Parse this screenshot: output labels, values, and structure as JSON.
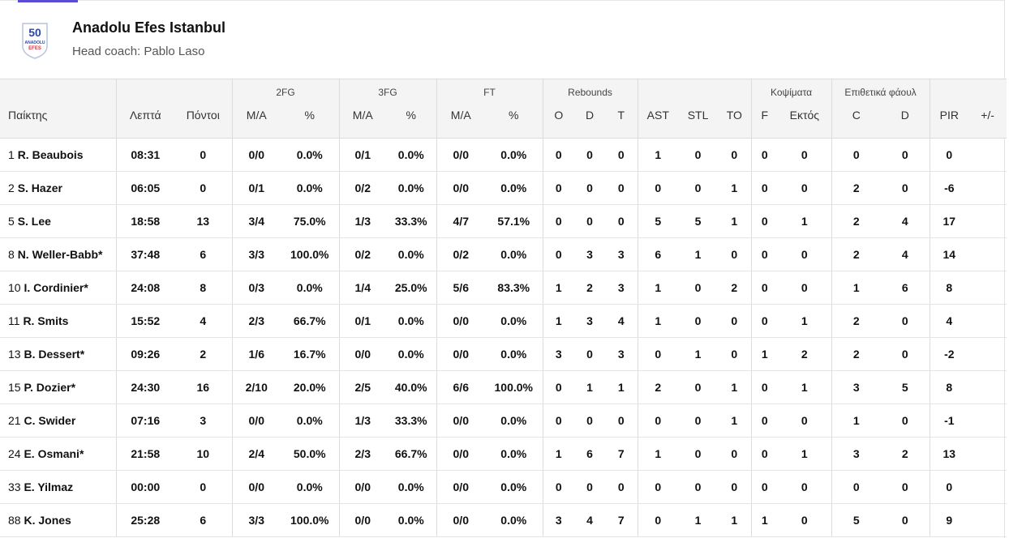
{
  "team": {
    "name": "Anadolu Efes Istanbul",
    "coach": "Head coach: Pablo Laso",
    "logo_text_top": "50",
    "logo_text_mid": "ANADOLU",
    "logo_text_bottom": "EFES",
    "colors": {
      "logo_blue": "#2a4aa0",
      "logo_red": "#d4313a"
    }
  },
  "header": {
    "groups": {
      "fg2": "2FG",
      "fg3": "3FG",
      "ft": "FT",
      "rebounds": "Rebounds",
      "blocks": "Κοψίματα",
      "fouls": "Επιθετικά φάουλ"
    },
    "cols": {
      "player": "Παίκτης",
      "minutes": "Λεπτά",
      "points": "Πόντοι",
      "fg2_ma": "M/A",
      "fg2_pct": "%",
      "fg3_ma": "M/A",
      "fg3_pct": "%",
      "ft_ma": "M/A",
      "ft_pct": "%",
      "reb_o": "O",
      "reb_d": "D",
      "reb_t": "T",
      "ast": "AST",
      "stl": "STL",
      "to": "TO",
      "blk_f": "F",
      "blk_a": "Εκτός",
      "foul_c": "C",
      "foul_d": "D",
      "pir": "PIR",
      "pm": "+/-"
    }
  },
  "players": [
    {
      "num": "1",
      "name": "R. Beaubois",
      "min": "08:31",
      "pts": "0",
      "fg2": "0/0",
      "fg2p": "0.0%",
      "fg3": "0/1",
      "fg3p": "0.0%",
      "ft": "0/0",
      "ftp": "0.0%",
      "o": "0",
      "d": "0",
      "t": "0",
      "ast": "1",
      "stl": "0",
      "to": "0",
      "bf": "0",
      "ba": "0",
      "fc": "0",
      "fd": "0",
      "pir": "0",
      "pm": ""
    },
    {
      "num": "2",
      "name": "S. Hazer",
      "min": "06:05",
      "pts": "0",
      "fg2": "0/1",
      "fg2p": "0.0%",
      "fg3": "0/2",
      "fg3p": "0.0%",
      "ft": "0/0",
      "ftp": "0.0%",
      "o": "0",
      "d": "0",
      "t": "0",
      "ast": "0",
      "stl": "0",
      "to": "1",
      "bf": "0",
      "ba": "0",
      "fc": "2",
      "fd": "0",
      "pir": "-6",
      "pm": ""
    },
    {
      "num": "5",
      "name": "S. Lee",
      "min": "18:58",
      "pts": "13",
      "fg2": "3/4",
      "fg2p": "75.0%",
      "fg3": "1/3",
      "fg3p": "33.3%",
      "ft": "4/7",
      "ftp": "57.1%",
      "o": "0",
      "d": "0",
      "t": "0",
      "ast": "5",
      "stl": "5",
      "to": "1",
      "bf": "0",
      "ba": "1",
      "fc": "2",
      "fd": "4",
      "pir": "17",
      "pm": ""
    },
    {
      "num": "8",
      "name": "N. Weller-Babb*",
      "min": "37:48",
      "pts": "6",
      "fg2": "3/3",
      "fg2p": "100.0%",
      "fg3": "0/2",
      "fg3p": "0.0%",
      "ft": "0/2",
      "ftp": "0.0%",
      "o": "0",
      "d": "3",
      "t": "3",
      "ast": "6",
      "stl": "1",
      "to": "0",
      "bf": "0",
      "ba": "0",
      "fc": "2",
      "fd": "4",
      "pir": "14",
      "pm": ""
    },
    {
      "num": "10",
      "name": "I. Cordinier*",
      "min": "24:08",
      "pts": "8",
      "fg2": "0/3",
      "fg2p": "0.0%",
      "fg3": "1/4",
      "fg3p": "25.0%",
      "ft": "5/6",
      "ftp": "83.3%",
      "o": "1",
      "d": "2",
      "t": "3",
      "ast": "1",
      "stl": "0",
      "to": "2",
      "bf": "0",
      "ba": "0",
      "fc": "1",
      "fd": "6",
      "pir": "8",
      "pm": ""
    },
    {
      "num": "11",
      "name": "R. Smits",
      "min": "15:52",
      "pts": "4",
      "fg2": "2/3",
      "fg2p": "66.7%",
      "fg3": "0/1",
      "fg3p": "0.0%",
      "ft": "0/0",
      "ftp": "0.0%",
      "o": "1",
      "d": "3",
      "t": "4",
      "ast": "1",
      "stl": "0",
      "to": "0",
      "bf": "0",
      "ba": "1",
      "fc": "2",
      "fd": "0",
      "pir": "4",
      "pm": ""
    },
    {
      "num": "13",
      "name": "B. Dessert*",
      "min": "09:26",
      "pts": "2",
      "fg2": "1/6",
      "fg2p": "16.7%",
      "fg3": "0/0",
      "fg3p": "0.0%",
      "ft": "0/0",
      "ftp": "0.0%",
      "o": "3",
      "d": "0",
      "t": "3",
      "ast": "0",
      "stl": "1",
      "to": "0",
      "bf": "1",
      "ba": "2",
      "fc": "2",
      "fd": "0",
      "pir": "-2",
      "pm": ""
    },
    {
      "num": "15",
      "name": "P. Dozier*",
      "min": "24:30",
      "pts": "16",
      "fg2": "2/10",
      "fg2p": "20.0%",
      "fg3": "2/5",
      "fg3p": "40.0%",
      "ft": "6/6",
      "ftp": "100.0%",
      "o": "0",
      "d": "1",
      "t": "1",
      "ast": "2",
      "stl": "0",
      "to": "1",
      "bf": "0",
      "ba": "1",
      "fc": "3",
      "fd": "5",
      "pir": "8",
      "pm": ""
    },
    {
      "num": "21",
      "name": "C. Swider",
      "min": "07:16",
      "pts": "3",
      "fg2": "0/0",
      "fg2p": "0.0%",
      "fg3": "1/3",
      "fg3p": "33.3%",
      "ft": "0/0",
      "ftp": "0.0%",
      "o": "0",
      "d": "0",
      "t": "0",
      "ast": "0",
      "stl": "0",
      "to": "1",
      "bf": "0",
      "ba": "0",
      "fc": "1",
      "fd": "0",
      "pir": "-1",
      "pm": ""
    },
    {
      "num": "24",
      "name": "E. Osmani*",
      "min": "21:58",
      "pts": "10",
      "fg2": "2/4",
      "fg2p": "50.0%",
      "fg3": "2/3",
      "fg3p": "66.7%",
      "ft": "0/0",
      "ftp": "0.0%",
      "o": "1",
      "d": "6",
      "t": "7",
      "ast": "1",
      "stl": "0",
      "to": "0",
      "bf": "0",
      "ba": "1",
      "fc": "3",
      "fd": "2",
      "pir": "13",
      "pm": ""
    },
    {
      "num": "33",
      "name": "E. Yilmaz",
      "min": "00:00",
      "pts": "0",
      "fg2": "0/0",
      "fg2p": "0.0%",
      "fg3": "0/0",
      "fg3p": "0.0%",
      "ft": "0/0",
      "ftp": "0.0%",
      "o": "0",
      "d": "0",
      "t": "0",
      "ast": "0",
      "stl": "0",
      "to": "0",
      "bf": "0",
      "ba": "0",
      "fc": "0",
      "fd": "0",
      "pir": "0",
      "pm": ""
    },
    {
      "num": "88",
      "name": "K. Jones",
      "min": "25:28",
      "pts": "6",
      "fg2": "3/3",
      "fg2p": "100.0%",
      "fg3": "0/0",
      "fg3p": "0.0%",
      "ft": "0/0",
      "ftp": "0.0%",
      "o": "3",
      "d": "4",
      "t": "7",
      "ast": "0",
      "stl": "1",
      "to": "1",
      "bf": "1",
      "ba": "0",
      "fc": "5",
      "fd": "0",
      "pir": "9",
      "pm": ""
    }
  ]
}
